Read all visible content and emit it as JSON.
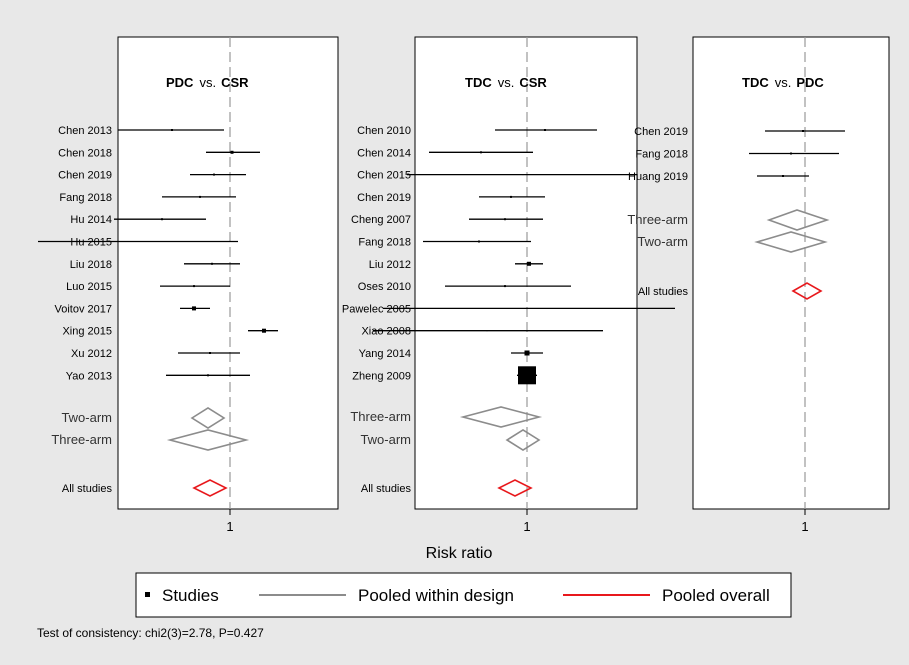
{
  "chart_data": [
    {
      "type": "forest",
      "header": {
        "left": "PDC",
        "vs": "vs.",
        "right": "CSR"
      },
      "reference_value": 1,
      "studies": [
        {
          "label": "Chen 2013",
          "est": 0.71,
          "lo": 0.44,
          "hi": 0.97,
          "weight": 2
        },
        {
          "label": "Chen 2018",
          "est": 1.01,
          "lo": 0.88,
          "hi": 1.15,
          "weight": 3
        },
        {
          "label": "Chen 2019",
          "est": 0.92,
          "lo": 0.8,
          "hi": 1.08,
          "weight": 2
        },
        {
          "label": "Fang 2018",
          "est": 0.85,
          "lo": 0.66,
          "hi": 1.03,
          "weight": 2
        },
        {
          "label": "Hu 2014",
          "est": 0.66,
          "lo": 0.42,
          "hi": 0.88,
          "weight": 2
        },
        {
          "label": "Hu 2015",
          "est": 0.53,
          "lo": 0.04,
          "hi": 1.04,
          "weight": 1
        },
        {
          "label": "Liu 2018",
          "est": 0.91,
          "lo": 0.77,
          "hi": 1.05,
          "weight": 2
        },
        {
          "label": "Luo 2015",
          "est": 0.82,
          "lo": 0.65,
          "hi": 1.0,
          "weight": 2
        },
        {
          "label": "Voitov 2017",
          "est": 0.82,
          "lo": 0.75,
          "hi": 0.9,
          "weight": 4
        },
        {
          "label": "Xing 2015",
          "est": 1.17,
          "lo": 1.09,
          "hi": 1.24,
          "weight": 4
        },
        {
          "label": "Xu 2012",
          "est": 0.9,
          "lo": 0.74,
          "hi": 1.05,
          "weight": 2
        },
        {
          "label": "Yao 2013",
          "est": 0.89,
          "lo": 0.68,
          "hi": 1.1,
          "weight": 2
        }
      ],
      "pooled": [
        {
          "label": "Two-arm",
          "est": 0.89,
          "lo": 0.81,
          "hi": 0.97,
          "kind": "design"
        },
        {
          "label": "Three-arm",
          "est": 0.89,
          "lo": 0.7,
          "hi": 1.08,
          "kind": "design"
        },
        {
          "label": "All studies",
          "est": 0.9,
          "lo": 0.82,
          "hi": 0.98,
          "kind": "overall"
        }
      ],
      "x_tick": "1"
    },
    {
      "type": "forest",
      "header": {
        "left": "TDC",
        "vs": "vs.",
        "right": "CSR"
      },
      "reference_value": 1,
      "studies": [
        {
          "label": "Chen 2010",
          "est": 1.09,
          "lo": 0.84,
          "hi": 1.35,
          "weight": 2
        },
        {
          "label": "Chen 2014",
          "est": 0.77,
          "lo": 0.51,
          "hi": 1.03,
          "weight": 2
        },
        {
          "label": "Chen 2015",
          "est": 0.98,
          "lo": 0.4,
          "hi": 1.55,
          "weight": 1
        },
        {
          "label": "Chen 2019",
          "est": 0.92,
          "lo": 0.76,
          "hi": 1.09,
          "weight": 2
        },
        {
          "label": "Cheng 2007",
          "est": 0.89,
          "lo": 0.71,
          "hi": 1.08,
          "weight": 2
        },
        {
          "label": "Fang 2018",
          "est": 0.76,
          "lo": 0.48,
          "hi": 1.02,
          "weight": 2
        },
        {
          "label": "Liu 2012",
          "est": 1.01,
          "lo": 0.94,
          "hi": 1.08,
          "weight": 4
        },
        {
          "label": "Oses 2010",
          "est": 0.89,
          "lo": 0.59,
          "hi": 1.22,
          "weight": 2
        },
        {
          "label": "Pawelec 2005",
          "est": 1.0,
          "lo": 0.28,
          "hi": 1.74,
          "weight": 1
        },
        {
          "label": "Xiao 2008",
          "est": 0.8,
          "lo": 0.23,
          "hi": 1.38,
          "weight": 1
        },
        {
          "label": "Yang 2014",
          "est": 1.0,
          "lo": 0.92,
          "hi": 1.08,
          "weight": 5
        },
        {
          "label": "Zheng 2009",
          "est": 1.0,
          "lo": 0.95,
          "hi": 1.05,
          "weight": 18
        }
      ],
      "pooled": [
        {
          "label": "Three-arm",
          "est": 0.87,
          "lo": 0.68,
          "hi": 1.06,
          "kind": "design"
        },
        {
          "label": "Two-arm",
          "est": 0.98,
          "lo": 0.9,
          "hi": 1.06,
          "kind": "design"
        },
        {
          "label": "All studies",
          "est": 0.94,
          "lo": 0.86,
          "hi": 1.02,
          "kind": "overall"
        }
      ],
      "x_tick": "1"
    },
    {
      "type": "forest",
      "header": {
        "left": "TDC",
        "vs": "vs.",
        "right": "PDC"
      },
      "reference_value": 1,
      "studies": [
        {
          "label": "Chen 2019",
          "est": 0.99,
          "lo": 0.8,
          "hi": 1.2,
          "weight": 2
        },
        {
          "label": "Fang 2018",
          "est": 0.93,
          "lo": 0.72,
          "hi": 1.17,
          "weight": 2
        },
        {
          "label": "Huang 2019",
          "est": 0.89,
          "lo": 0.76,
          "hi": 1.02,
          "weight": 2
        }
      ],
      "pooled": [
        {
          "label": "Three-arm",
          "est": 0.96,
          "lo": 0.82,
          "hi": 1.11,
          "kind": "design"
        },
        {
          "label": "Two-arm",
          "est": 0.93,
          "lo": 0.76,
          "hi": 1.1,
          "kind": "design"
        },
        {
          "label": "All studies",
          "est": 1.01,
          "lo": 0.94,
          "hi": 1.08,
          "kind": "overall"
        }
      ],
      "x_tick": "1"
    }
  ],
  "x_axis_label": "Risk ratio",
  "legend": {
    "studies": "Studies",
    "pooled_within_design": "Pooled within design",
    "pooled_overall": "Pooled overall"
  },
  "colors": {
    "background": "#e8e8e8",
    "panel": "#ffffff",
    "design": "#8c8c8c",
    "overall": "#e8181c",
    "study": "#000000",
    "reference_line": "#9a9a9a"
  },
  "consistency_test": "Test of consistency: chi2(3)=2.78, P=0.427"
}
